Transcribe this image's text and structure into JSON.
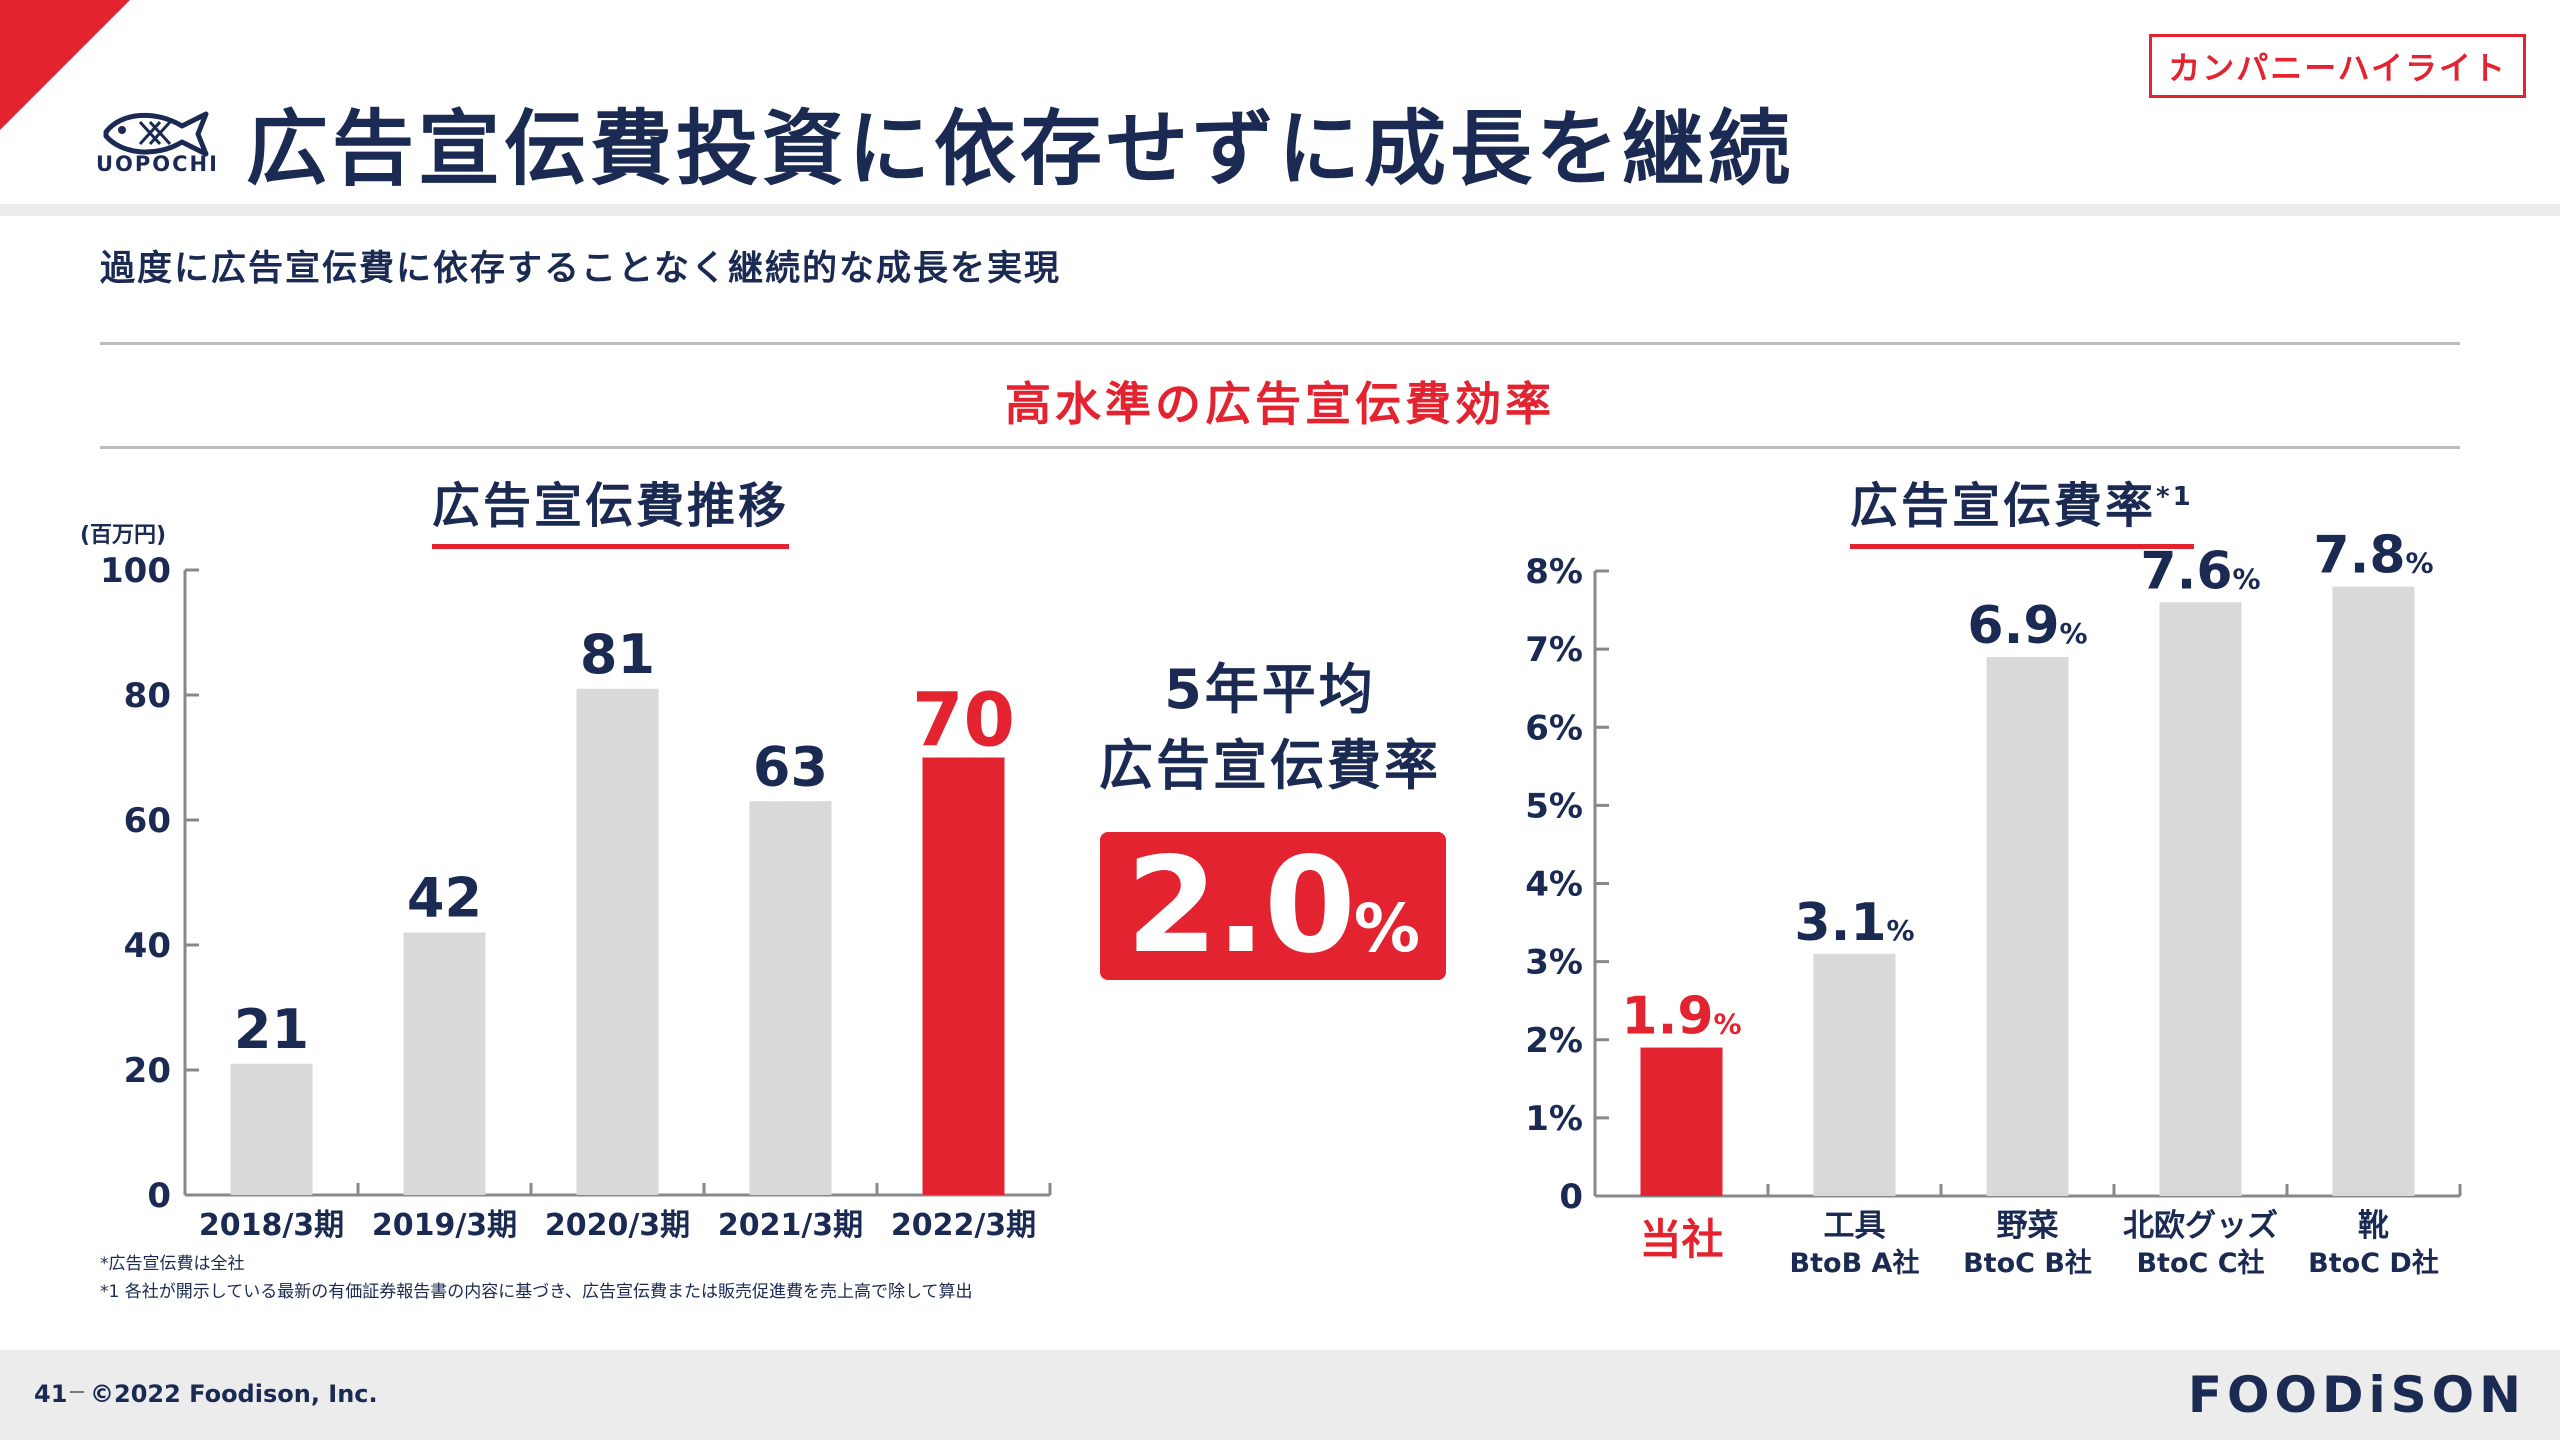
{
  "badge": "カンパニーハイライト",
  "logo_text": "UOPOCHI",
  "title": "広告宣伝費投資に依存せずに成長を継続",
  "subtitle": "過度に広告宣伝費に依存することなく継続的な成長を実現",
  "section_title": "高水準の広告宣伝費効率",
  "average": {
    "line1": "5年平均",
    "line2": "広告宣伝費率",
    "value": "2.0",
    "unit": "%"
  },
  "notes": {
    "note1": "*広告宣伝費は全社",
    "note2": "*1 各社が開示している最新の有価証券報告書の内容に基づき、広告宣伝費または販売促進費を売上高で除して算出"
  },
  "footer": {
    "page": "41",
    "copyright": "©2022 Foodison, Inc.",
    "brand": "FOODiSON"
  },
  "colors": {
    "accent": "#e3232f",
    "navy": "#1b2a52",
    "bar": "#d9d9d9"
  },
  "chart_data": [
    {
      "type": "bar",
      "title": "広告宣伝費推移",
      "ylabel": "(百万円)",
      "categories": [
        "2018/3期",
        "2019/3期",
        "2020/3期",
        "2021/3期",
        "2022/3期"
      ],
      "values": [
        21,
        42,
        81,
        63,
        70
      ],
      "value_labels": [
        "21",
        "42",
        "81",
        "63",
        "70"
      ],
      "highlight_index": 4,
      "ylim": [
        0,
        100
      ],
      "yticks": [
        "0",
        "20",
        "40",
        "60",
        "80",
        "100"
      ],
      "grid": false
    },
    {
      "type": "bar",
      "title": "広告宣伝費率",
      "title_sup": "*1",
      "categories": [
        {
          "line1": "当社",
          "line2": ""
        },
        {
          "line1": "工具",
          "line2": "BtoB A社"
        },
        {
          "line1": "野菜",
          "line2": "BtoC B社"
        },
        {
          "line1": "北欧グッズ",
          "line2": "BtoC C社"
        },
        {
          "line1": "靴",
          "line2": "BtoC D社"
        }
      ],
      "values": [
        1.9,
        3.1,
        6.9,
        7.6,
        7.8
      ],
      "value_labels": [
        "1.9",
        "3.1",
        "6.9",
        "7.6",
        "7.8"
      ],
      "value_unit": "%",
      "highlight_index": 0,
      "ylim": [
        0,
        8
      ],
      "yticks": [
        "0",
        "1%",
        "2%",
        "3%",
        "4%",
        "5%",
        "6%",
        "7%",
        "8%"
      ],
      "grid": false
    }
  ]
}
